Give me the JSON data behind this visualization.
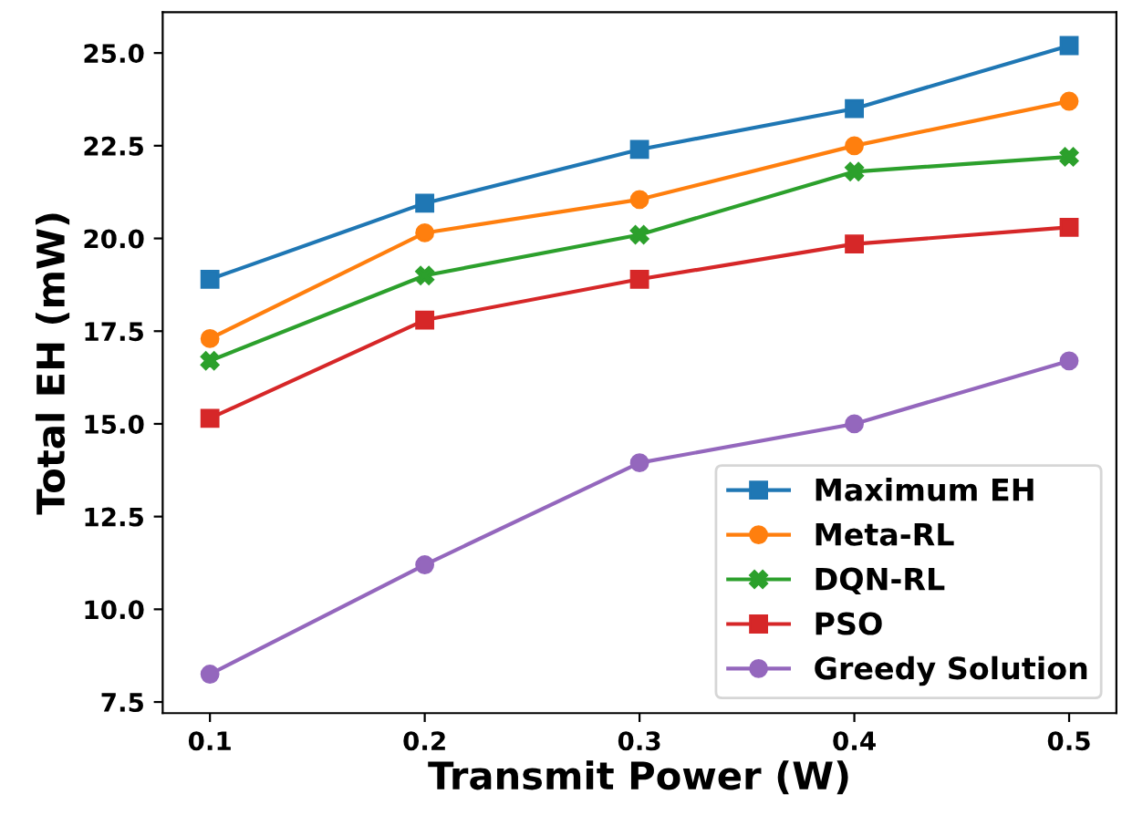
{
  "chart_data": {
    "type": "line",
    "xlabel": "Transmit Power (W)",
    "ylabel": "Total EH (mW)",
    "x": [
      0.1,
      0.2,
      0.3,
      0.4,
      0.5
    ],
    "series": [
      {
        "name": "Maximum EH",
        "color": "#1f77b4",
        "marker": "square",
        "values": [
          18.9,
          20.95,
          22.4,
          23.5,
          25.2
        ]
      },
      {
        "name": "Meta-RL",
        "color": "#ff7f0e",
        "marker": "circle",
        "values": [
          17.3,
          20.15,
          21.05,
          22.5,
          23.7
        ]
      },
      {
        "name": "DQN-RL",
        "color": "#2ca02c",
        "marker": "cross",
        "values": [
          16.7,
          19.0,
          20.1,
          21.8,
          22.2
        ]
      },
      {
        "name": "PSO",
        "color": "#d62728",
        "marker": "square",
        "values": [
          15.15,
          17.8,
          18.9,
          19.85,
          20.3
        ]
      },
      {
        "name": "Greedy Solution",
        "color": "#9467bd",
        "marker": "circle",
        "values": [
          8.25,
          11.2,
          13.95,
          15.0,
          16.7
        ]
      }
    ],
    "xlim": [
      0.078,
      0.522
    ],
    "ylim": [
      7.2,
      26.1
    ],
    "xticks": [
      0.1,
      0.2,
      0.3,
      0.4,
      0.5
    ],
    "yticks": [
      7.5,
      {
        "value": 10,
        "label": "10.0"
      },
      12.5,
      {
        "value": 15,
        "label": "15.0"
      },
      17.5,
      {
        "value": 20,
        "label": "20.0"
      },
      22.5,
      {
        "value": 25,
        "label": "25.0"
      }
    ],
    "legend": "bottom right",
    "grid": false,
    "line_style": "solid"
  }
}
